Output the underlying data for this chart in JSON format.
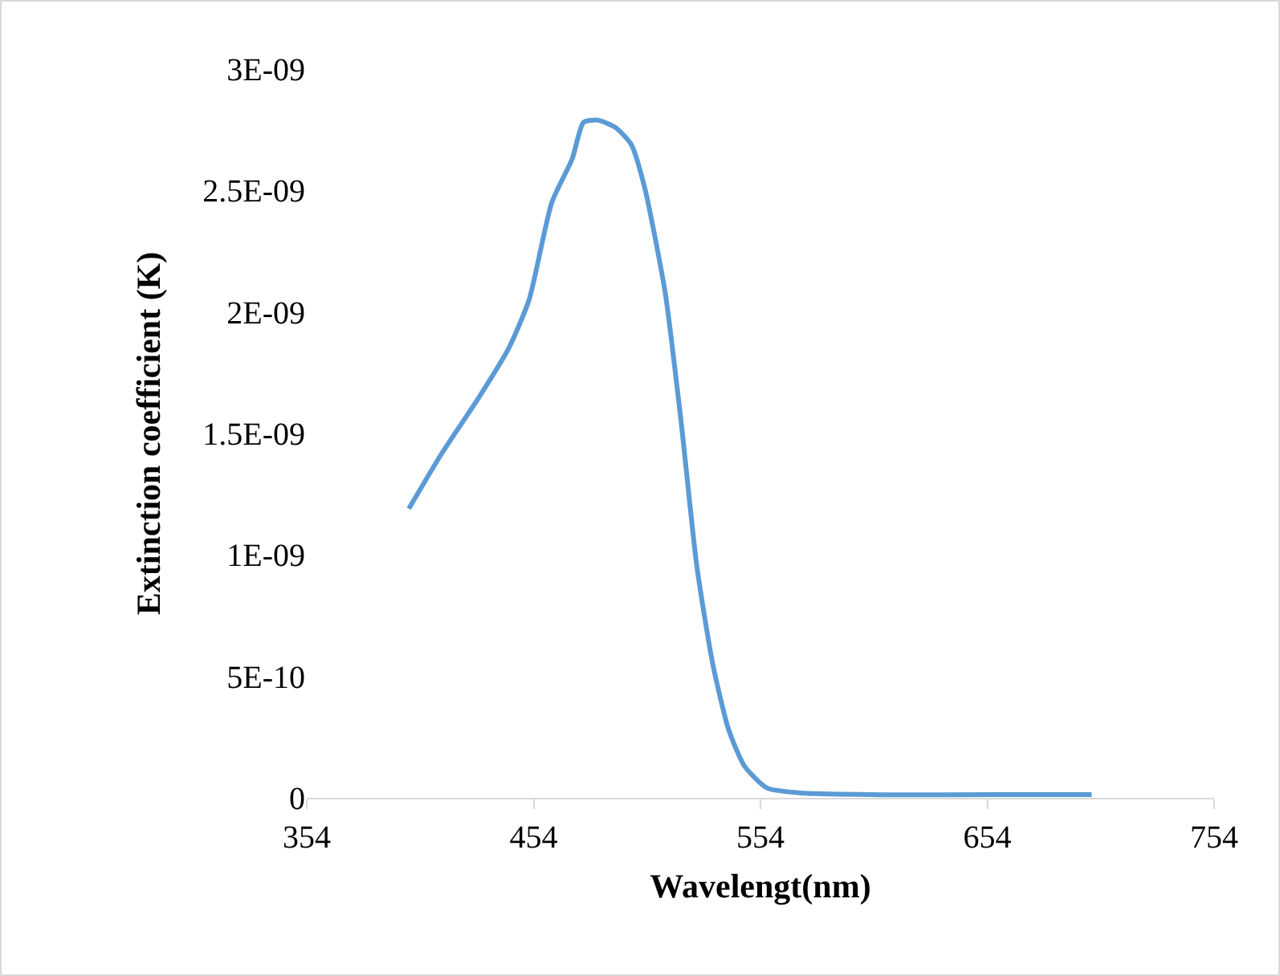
{
  "chart_data": {
    "type": "line",
    "xlabel": "Wavelengt(nm)",
    "ylabel": "Extinction coefficient (K)",
    "x": [
      399,
      413,
      430,
      443,
      452,
      462,
      471,
      476,
      482,
      490,
      497,
      503,
      512,
      519,
      526,
      533,
      540,
      547,
      557,
      572,
      614,
      656,
      700
    ],
    "series": [
      {
        "color": "#5b9bd5",
        "values": [
          1.19e-09,
          1.41e-09,
          1.65e-09,
          1.85e-09,
          2.05e-09,
          2.45e-09,
          2.63e-09,
          2.78e-09,
          2.79e-09,
          2.76e-09,
          2.69e-09,
          2.51e-09,
          2.08e-09,
          1.55e-09,
          9.5e-10,
          5.5e-10,
          2.8e-10,
          1.3e-10,
          4e-11,
          2e-11,
          1.2e-11,
          1.3e-11,
          1.3e-11
        ]
      }
    ],
    "xlim": [
      354,
      754
    ],
    "xticks": [
      354,
      454,
      554,
      654,
      754
    ],
    "ylim": [
      0,
      3e-09
    ],
    "yticks": [
      0,
      {
        "value": 5e-10,
        "label": "5E-10"
      },
      {
        "value": 1e-09,
        "label": "1E-09"
      },
      {
        "value": 1.5e-09,
        "label": "1.5E-09"
      },
      {
        "value": 2e-09,
        "label": "2E-09"
      },
      {
        "value": 2.5e-09,
        "label": "2.5E-09"
      },
      {
        "value": 3e-09,
        "label": "3E-09"
      }
    ],
    "grid": false,
    "marker": "none",
    "line_style": "solid"
  }
}
